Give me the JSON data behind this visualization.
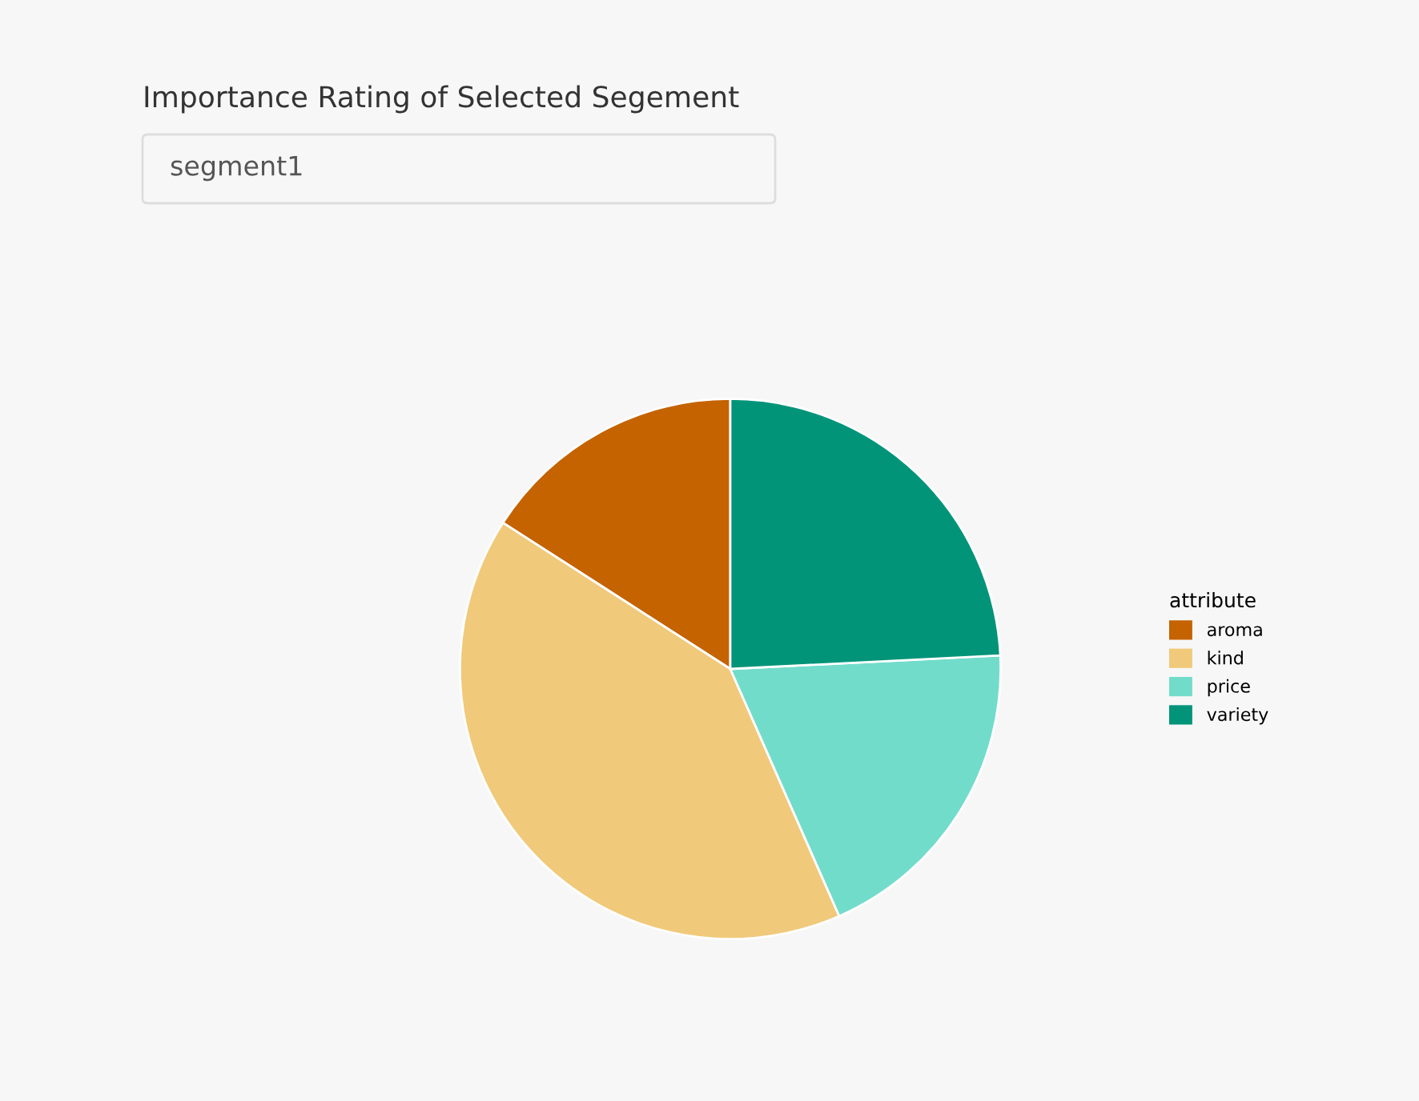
{
  "chart_data": {
    "type": "pie",
    "title": "Importance Rating of Selected Segement",
    "subtitle": "segment1",
    "legend_title": "attribute",
    "legend": "right",
    "categories": [
      "aroma",
      "kind",
      "price",
      "variety"
    ],
    "values": [
      15.9,
      40.7,
      19.2,
      24.2
    ],
    "colors": [
      "#c46300",
      "#f0c97a",
      "#72dccb",
      "#019479"
    ]
  }
}
